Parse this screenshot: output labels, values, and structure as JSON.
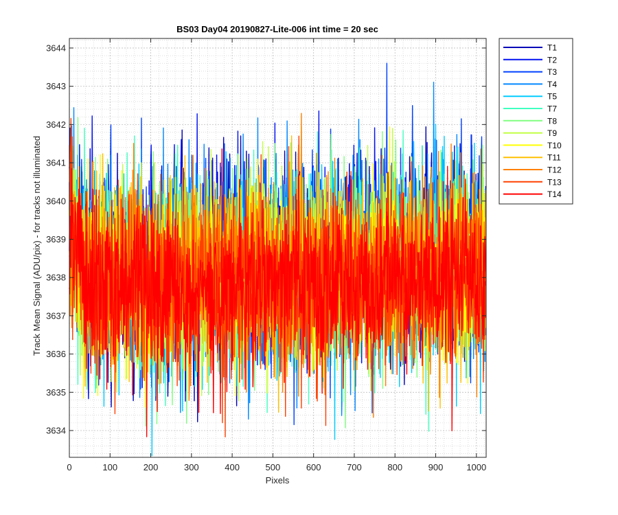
{
  "chart_data": {
    "type": "line",
    "title": "BS03 Day04 20190827-Lite-006 int time = 20 sec",
    "xlabel": "Pixels",
    "ylabel": "Track Mean Signal (ADU/pix) - for tracks not illuminated",
    "xlim": [
      0,
      1024
    ],
    "ylim": [
      3633.3,
      3644.25
    ],
    "x_ticks": [
      0,
      100,
      200,
      300,
      400,
      500,
      600,
      700,
      800,
      900,
      1000
    ],
    "x_tick_labels": [
      "0",
      "100",
      "200",
      "300",
      "400",
      "500",
      "600",
      "700",
      "800",
      "900",
      "1000"
    ],
    "y_ticks": [
      3634,
      3635,
      3636,
      3637,
      3638,
      3639,
      3640,
      3641,
      3642,
      3643,
      3644
    ],
    "y_tick_labels": [
      "3634",
      "3635",
      "3636",
      "3637",
      "3638",
      "3639",
      "3640",
      "3641",
      "3642",
      "3643",
      "3644"
    ],
    "grid": true,
    "minor_grid": true,
    "legend_position": "outside-top-right",
    "n_points_per_series": 1024,
    "series": [
      {
        "name": "T1",
        "color": "#0000b8",
        "mean": 3638.15,
        "mean_at_end": 3638.7,
        "noise_sd": 1.3
      },
      {
        "name": "T2",
        "color": "#0010f0",
        "mean": 3638.15,
        "mean_at_end": 3638.7,
        "noise_sd": 1.3
      },
      {
        "name": "T3",
        "color": "#0040ff",
        "mean": 3638.1,
        "mean_at_end": 3638.6,
        "noise_sd": 1.3
      },
      {
        "name": "T4",
        "color": "#0088ff",
        "mean": 3638.1,
        "mean_at_end": 3638.55,
        "noise_sd": 1.28
      },
      {
        "name": "T5",
        "color": "#00ccff",
        "mean": 3638.05,
        "mean_at_end": 3638.5,
        "noise_sd": 1.28
      },
      {
        "name": "T7",
        "color": "#40ffc0",
        "mean": 3638.0,
        "mean_at_end": 3638.4,
        "noise_sd": 1.25
      },
      {
        "name": "T8",
        "color": "#80ff80",
        "mean": 3638.0,
        "mean_at_end": 3638.35,
        "noise_sd": 1.25
      },
      {
        "name": "T9",
        "color": "#c0ff40",
        "mean": 3637.95,
        "mean_at_end": 3638.3,
        "noise_sd": 1.22
      },
      {
        "name": "T10",
        "color": "#ffff00",
        "mean": 3637.9,
        "mean_at_end": 3638.2,
        "noise_sd": 1.2
      },
      {
        "name": "T11",
        "color": "#ffc000",
        "mean": 3637.9,
        "mean_at_end": 3638.15,
        "noise_sd": 1.2
      },
      {
        "name": "T12",
        "color": "#ff8000",
        "mean": 3637.85,
        "mean_at_end": 3638.1,
        "noise_sd": 1.2
      },
      {
        "name": "T13",
        "color": "#ff4000",
        "mean": 3637.8,
        "mean_at_end": 3638.0,
        "noise_sd": 1.15
      },
      {
        "name": "T14",
        "color": "#ff0000",
        "mean": 3637.75,
        "mean_at_end": 3637.9,
        "noise_sd": 1.1
      }
    ]
  }
}
